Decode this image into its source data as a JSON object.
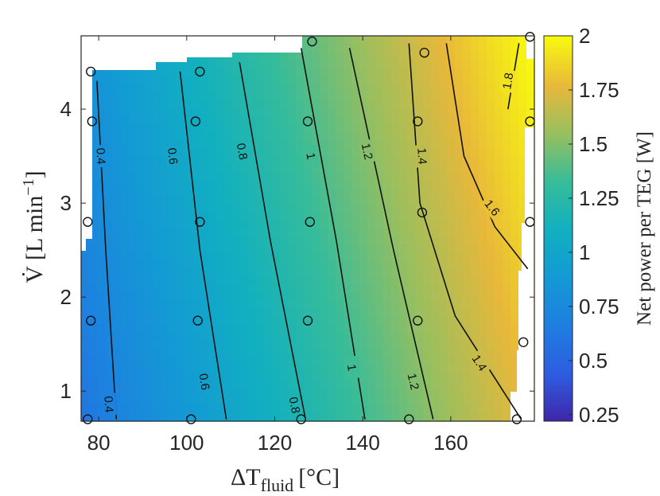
{
  "chart_data": {
    "type": "contour",
    "x_axis": {
      "label": "ΔT",
      "label_sub": "fluid",
      "label_unit": "[°C]",
      "range": [
        76,
        179
      ],
      "ticks": [
        80,
        100,
        120,
        140,
        160
      ]
    },
    "y_axis": {
      "label": "V̇ [L min",
      "label_sup": "−1",
      "label_end": "]",
      "range": [
        0.68,
        4.78
      ],
      "ticks": [
        1,
        2,
        3,
        4
      ]
    },
    "colorbar": {
      "label": "Net power per TEG [W]",
      "range": [
        0.22,
        2.0
      ],
      "ticks": [
        0.25,
        0.5,
        0.75,
        1,
        1.25,
        1.5,
        1.75,
        2
      ],
      "tick_labels": [
        "0.25",
        "0.5",
        "0.75",
        "1",
        "1.25",
        "1.5",
        "1.75",
        "2"
      ]
    },
    "contours": [
      {
        "level": "0.4",
        "points": [
          [
            84,
            0.7
          ],
          [
            81.6,
            2.5
          ],
          [
            79.6,
            4.3
          ]
        ],
        "labels": [
          {
            "x": 80.5,
            "y": 3.5,
            "text": "0.4"
          },
          {
            "x": 82.3,
            "y": 0.86,
            "text": "0.4"
          }
        ]
      },
      {
        "level": "0.6",
        "points": [
          [
            109,
            0.7
          ],
          [
            103,
            2.5
          ],
          [
            98.5,
            4.4
          ]
        ],
        "labels": [
          {
            "x": 96.8,
            "y": 3.5,
            "text": "0.6"
          },
          {
            "x": 104,
            "y": 1.1,
            "text": "0.6"
          }
        ]
      },
      {
        "level": "0.8",
        "points": [
          [
            127,
            0.7
          ],
          [
            119,
            2.6
          ],
          [
            112,
            4.5
          ]
        ],
        "labels": [
          {
            "x": 112.6,
            "y": 3.55,
            "text": "0.8"
          },
          {
            "x": 124.5,
            "y": 0.85,
            "text": "0.8"
          }
        ]
      },
      {
        "level": "1",
        "points": [
          [
            140.5,
            0.7
          ],
          [
            134,
            2.6
          ],
          [
            126,
            4.65
          ]
        ],
        "labels": [
          {
            "x": 128.2,
            "y": 3.5,
            "text": "1"
          },
          {
            "x": 137.5,
            "y": 1.25,
            "text": "1"
          }
        ]
      },
      {
        "level": "1.2",
        "points": [
          [
            156,
            0.7
          ],
          [
            147,
            2.5
          ],
          [
            137,
            4.65
          ]
        ],
        "labels": [
          {
            "x": 141,
            "y": 3.55,
            "text": "1.2"
          },
          {
            "x": 151.5,
            "y": 1.1,
            "text": "1.2"
          }
        ]
      },
      {
        "level": "1.4",
        "points": [
          [
            176,
            0.7
          ],
          [
            161,
            1.8
          ],
          [
            153,
            3.0
          ],
          [
            150.5,
            4.7
          ]
        ],
        "labels": [
          {
            "x": 153.5,
            "y": 3.5,
            "text": "1.4"
          },
          {
            "x": 166.5,
            "y": 1.3,
            "text": "1.4"
          }
        ]
      },
      {
        "level": "1.6",
        "points": [
          [
            177.5,
            2.3
          ],
          [
            170,
            2.75
          ],
          [
            163,
            3.5
          ],
          [
            159,
            4.7
          ]
        ],
        "labels": [
          {
            "x": 169.4,
            "y": 2.95,
            "text": "1.6"
          }
        ]
      },
      {
        "level": "1.8",
        "points": [
          [
            175.5,
            4.7
          ],
          [
            173,
            4.0
          ]
        ],
        "labels": [
          {
            "x": 173,
            "y": 4.3,
            "text": "1.8"
          }
        ]
      }
    ],
    "sample_points": [
      {
        "x": 77.5,
        "y": 0.7
      },
      {
        "x": 78.2,
        "y": 1.75
      },
      {
        "x": 77.5,
        "y": 2.8
      },
      {
        "x": 78.5,
        "y": 3.87
      },
      {
        "x": 78.2,
        "y": 4.4
      },
      {
        "x": 101,
        "y": 0.7
      },
      {
        "x": 102.5,
        "y": 1.75
      },
      {
        "x": 103,
        "y": 2.8
      },
      {
        "x": 102,
        "y": 3.87
      },
      {
        "x": 103,
        "y": 4.4
      },
      {
        "x": 126,
        "y": 0.7
      },
      {
        "x": 127.5,
        "y": 1.75
      },
      {
        "x": 128,
        "y": 2.8
      },
      {
        "x": 127.5,
        "y": 3.87
      },
      {
        "x": 128.5,
        "y": 4.72
      },
      {
        "x": 150.5,
        "y": 0.7
      },
      {
        "x": 152.5,
        "y": 1.75
      },
      {
        "x": 153.5,
        "y": 2.9
      },
      {
        "x": 152.5,
        "y": 3.87
      },
      {
        "x": 154,
        "y": 4.6
      },
      {
        "x": 175,
        "y": 0.7
      },
      {
        "x": 176.5,
        "y": 1.52
      },
      {
        "x": 178,
        "y": 2.8
      },
      {
        "x": 178,
        "y": 3.87
      },
      {
        "x": 178,
        "y": 4.77
      }
    ],
    "field_model": {
      "base": -0.31,
      "per_degC": 0.0115,
      "per_flow": 0.055
    },
    "grid": false
  }
}
